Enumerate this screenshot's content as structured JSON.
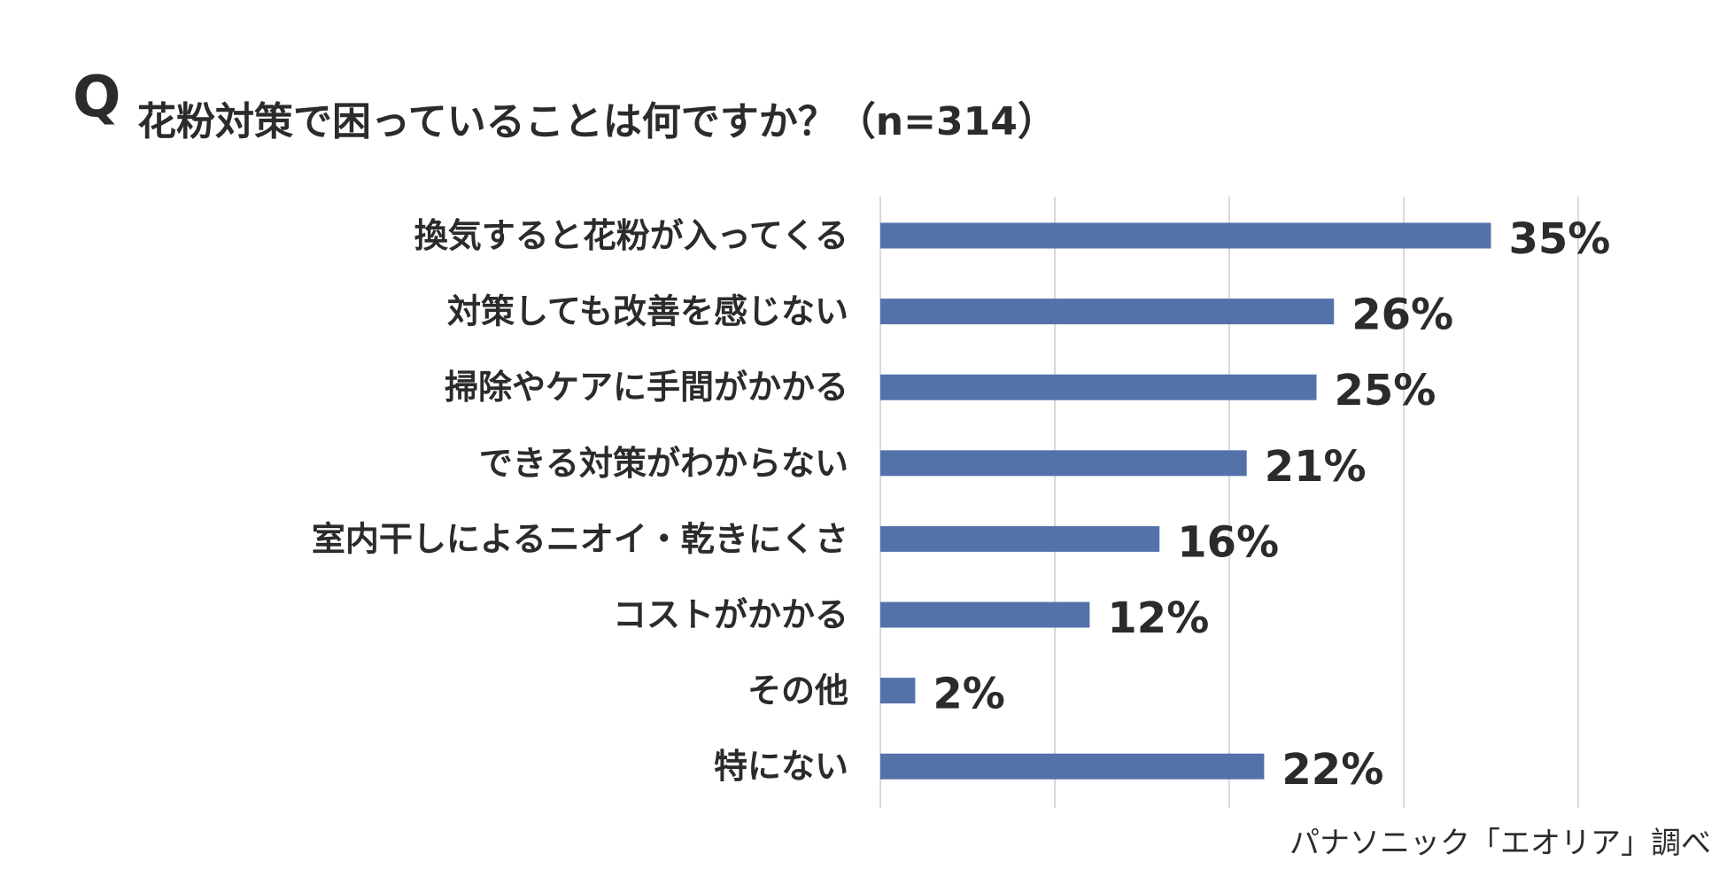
{
  "header": {
    "q_mark": "Q",
    "title": "花粉対策で困っていることは何ですか？（n=314）"
  },
  "source_note": "パナソニック「エオリア」調べ",
  "colors": {
    "bar": "#5472aa",
    "grid": "#d9d9d9",
    "text": "#2b2b2b"
  },
  "chart_data": {
    "type": "bar",
    "orientation": "horizontal",
    "title": "花粉対策で困っていることは何ですか？（n=314）",
    "categories": [
      "換気すると花粉が入ってくる",
      "対策しても改善を感じない",
      "掃除やケアに手間がかかる",
      "できる対策がわからない",
      "室内干しによるニオイ・乾きにくさ",
      "コストがかかる",
      "その他",
      "特にない"
    ],
    "values": [
      35,
      26,
      25,
      21,
      16,
      12,
      2,
      22
    ],
    "value_labels": [
      "35%",
      "26%",
      "25%",
      "21%",
      "16%",
      "12%",
      "2%",
      "22%"
    ],
    "unit": "%",
    "xlim": [
      0,
      40
    ],
    "grid_step": 10,
    "grid": true,
    "legend": false
  }
}
